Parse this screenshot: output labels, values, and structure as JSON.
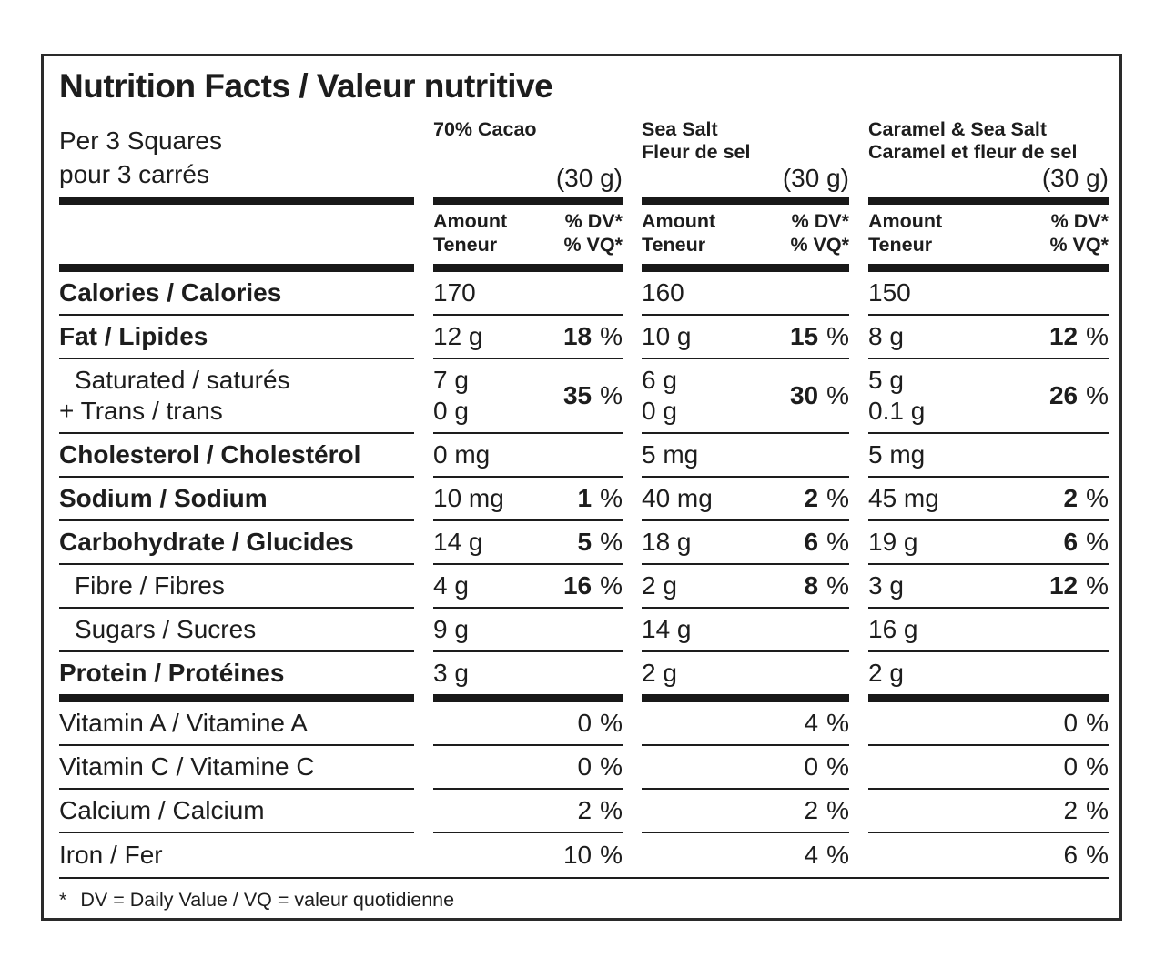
{
  "colors": {
    "ink": "#1d1d1d",
    "paper": "#ffffff"
  },
  "percent_sign": "%",
  "label": {
    "title": "Nutrition Facts / Valeur nutritive",
    "serving_en": "Per 3 Squares",
    "serving_fr": "pour 3 carrés",
    "columns": [
      {
        "name_en": "70% Cacao",
        "name_fr": "",
        "size": "(30 g)"
      },
      {
        "name_en": "Sea Salt",
        "name_fr": "Fleur de sel",
        "size": "(30 g)"
      },
      {
        "name_en": "Caramel & Sea Salt",
        "name_fr": "Caramel et fleur de sel",
        "size": "(30 g)"
      }
    ],
    "header": {
      "amount_en": "Amount",
      "amount_fr": "Teneur",
      "dv_en": "% DV*",
      "dv_fr": "% VQ*"
    }
  },
  "rows": [
    {
      "label": "Calories / Calories",
      "cols": [
        {
          "amount": "170"
        },
        {
          "amount": "160"
        },
        {
          "amount": "150"
        }
      ]
    },
    {
      "label": "Fat / Lipides",
      "cols": [
        {
          "amount": "12 g",
          "dv": "18"
        },
        {
          "amount": "10 g",
          "dv": "15"
        },
        {
          "amount": "8 g",
          "dv": "12"
        }
      ]
    },
    {
      "label1": "Saturated / saturés",
      "label2": "+ Trans / trans",
      "cols": [
        {
          "amount1": "7 g",
          "amount2": "0 g",
          "dv": "35"
        },
        {
          "amount1": "6 g",
          "amount2": "0 g",
          "dv": "30"
        },
        {
          "amount1": "5 g",
          "amount2": "0.1 g",
          "dv": "26"
        }
      ]
    },
    {
      "label": "Cholesterol / Cholestérol",
      "cols": [
        {
          "amount": "0 mg"
        },
        {
          "amount": "5 mg"
        },
        {
          "amount": "5 mg"
        }
      ]
    },
    {
      "label": "Sodium / Sodium",
      "cols": [
        {
          "amount": "10 mg",
          "dv": "1"
        },
        {
          "amount": "40 mg",
          "dv": "2"
        },
        {
          "amount": "45 mg",
          "dv": "2"
        }
      ]
    },
    {
      "label": "Carbohydrate / Glucides",
      "cols": [
        {
          "amount": "14 g",
          "dv": "5"
        },
        {
          "amount": "18 g",
          "dv": "6"
        },
        {
          "amount": "19 g",
          "dv": "6"
        }
      ]
    },
    {
      "label": "Fibre / Fibres",
      "cols": [
        {
          "amount": "4 g",
          "dv": "16"
        },
        {
          "amount": "2 g",
          "dv": "8"
        },
        {
          "amount": "3 g",
          "dv": "12"
        }
      ]
    },
    {
      "label": "Sugars / Sucres",
      "cols": [
        {
          "amount": "9 g"
        },
        {
          "amount": "14 g"
        },
        {
          "amount": "16 g"
        }
      ]
    },
    {
      "label": "Protein / Protéines",
      "cols": [
        {
          "amount": "3 g"
        },
        {
          "amount": "2 g"
        },
        {
          "amount": "2 g"
        }
      ]
    },
    {
      "label": "Vitamin A / Vitamine A",
      "cols": [
        {
          "dv": "0"
        },
        {
          "dv": "4"
        },
        {
          "dv": "0"
        }
      ]
    },
    {
      "label": "Vitamin C / Vitamine C",
      "cols": [
        {
          "dv": "0"
        },
        {
          "dv": "0"
        },
        {
          "dv": "0"
        }
      ]
    },
    {
      "label": "Calcium / Calcium",
      "cols": [
        {
          "dv": "2"
        },
        {
          "dv": "2"
        },
        {
          "dv": "2"
        }
      ]
    },
    {
      "label": "Iron / Fer",
      "cols": [
        {
          "dv": "10"
        },
        {
          "dv": "4"
        },
        {
          "dv": "6"
        }
      ]
    }
  ],
  "footnote": {
    "star": "*",
    "text": "DV = Daily Value / VQ = valeur quotidienne"
  }
}
